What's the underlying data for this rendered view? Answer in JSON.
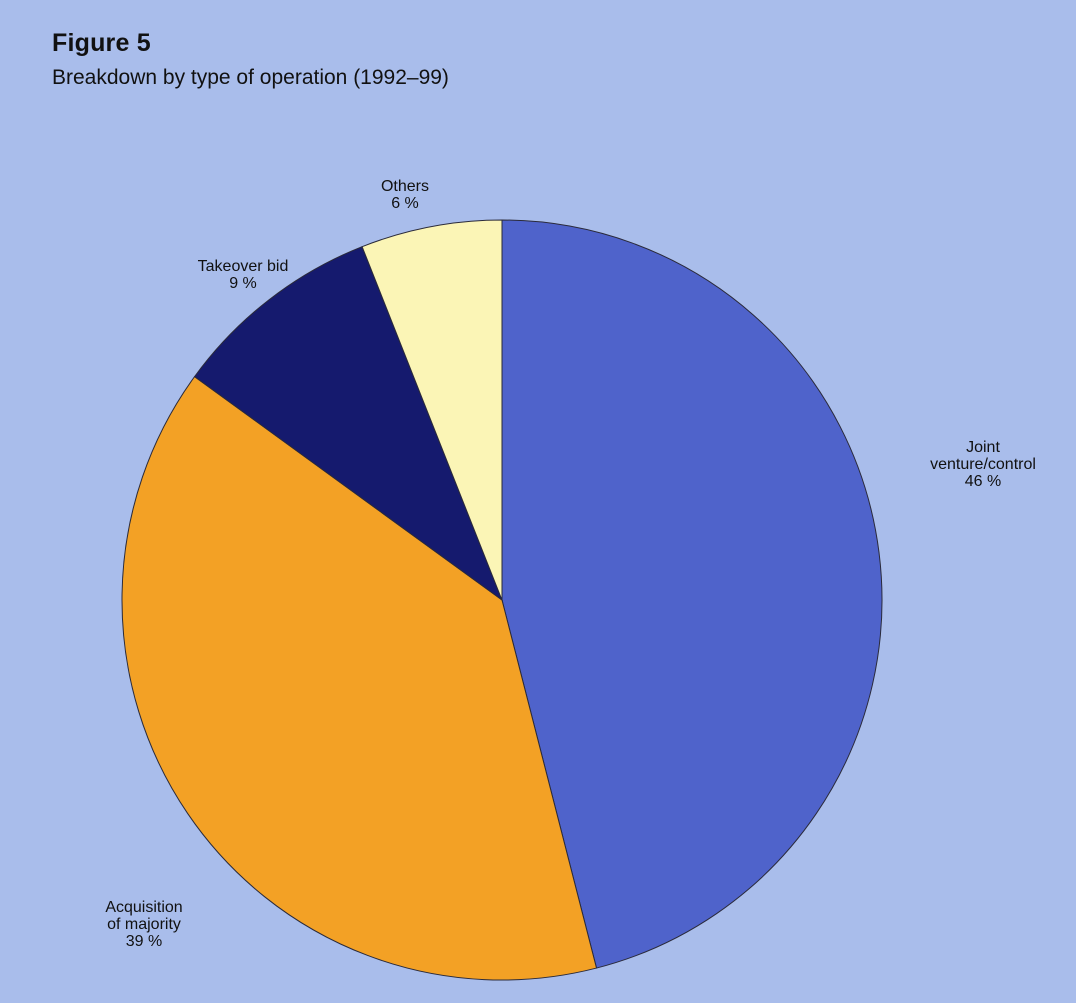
{
  "figure": {
    "label": "Figure 5",
    "subtitle": "Breakdown by type of operation (1992–99)"
  },
  "chart_data": {
    "type": "pie",
    "start_angle_deg": 0,
    "direction": "clockwise",
    "slices": [
      {
        "label_lines": [
          "Joint",
          "venture/control",
          "46 %"
        ],
        "value": 46,
        "color": "#4f63cb"
      },
      {
        "label_lines": [
          "Acquisition",
          "of majority",
          "39 %"
        ],
        "value": 39,
        "color": "#f3a125"
      },
      {
        "label_lines": [
          "Takeover bid",
          "9 %"
        ],
        "value": 9,
        "color": "#151a6e"
      },
      {
        "label_lines": [
          "Others",
          "6 %"
        ],
        "value": 6,
        "color": "#fbf5b6"
      }
    ]
  }
}
